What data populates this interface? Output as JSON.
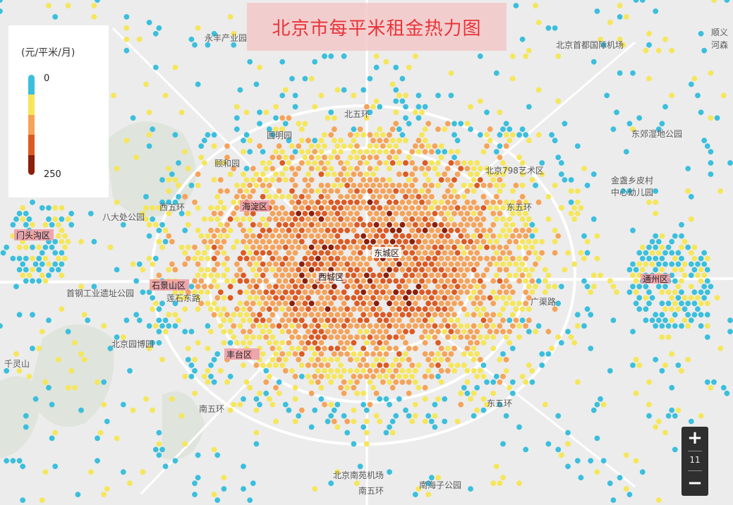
{
  "title": "北京市每平米租金热力图",
  "legend": {
    "unit": "(元/平米/月)",
    "min": "0",
    "max": "250",
    "colors": [
      "#3bbfdc",
      "#f5e65a",
      "#f5a35a",
      "#dc5a23",
      "#8b1f0b"
    ]
  },
  "zoom": {
    "in_label": "+",
    "out_label": "−",
    "level": "11"
  },
  "map_labels": [
    {
      "text": "永丰产业园"
    },
    {
      "text": "北京首都国际机场"
    },
    {
      "text": "顺义"
    },
    {
      "text": "河森"
    },
    {
      "text": "北五环"
    },
    {
      "text": "圆明园"
    },
    {
      "text": "颐和园"
    },
    {
      "text": "东郊湿地公园"
    },
    {
      "text": "北京798艺术区"
    },
    {
      "text": "金盏乡皮村"
    },
    {
      "text": "中心幼儿园"
    },
    {
      "text": "八大处公园"
    },
    {
      "text": "西五环"
    },
    {
      "text": "东五环"
    },
    {
      "text": "首钢工业遗址公园"
    },
    {
      "text": "莲石东路"
    },
    {
      "text": "广渠路"
    },
    {
      "text": "北京园博园"
    },
    {
      "text": "千灵山"
    },
    {
      "text": "南五环"
    },
    {
      "text": "东五环"
    },
    {
      "text": "北京南苑机场"
    },
    {
      "text": "南五环"
    },
    {
      "text": "南海子公园"
    }
  ],
  "district_labels": [
    {
      "text": "海淀区"
    },
    {
      "text": "门头沟区"
    },
    {
      "text": "石景山区"
    },
    {
      "text": "东城区"
    },
    {
      "text": "西城区"
    },
    {
      "text": "丰台区"
    },
    {
      "text": "通州区"
    }
  ]
}
